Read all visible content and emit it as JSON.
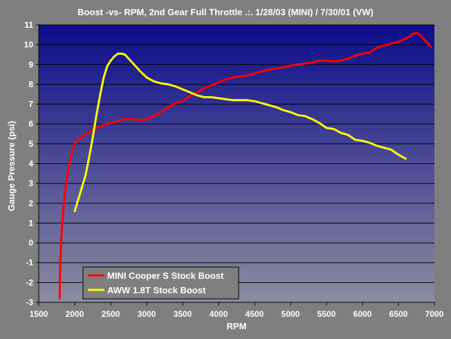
{
  "chart_data": {
    "type": "line",
    "title": "Boost -vs- RPM, 2nd Gear Full Throttle .:. 1/28/03  (MINI) / 7/30/01 (VW)",
    "xlabel": "RPM",
    "ylabel": "Gauge Pressure (psi)",
    "xlim": [
      1500,
      7000
    ],
    "ylim": [
      -3,
      11
    ],
    "xticks": [
      1500,
      2000,
      2500,
      3000,
      3500,
      4000,
      4500,
      5000,
      5500,
      6000,
      6500,
      7000
    ],
    "yticks": [
      -3,
      -2,
      -1,
      0,
      1,
      2,
      3,
      4,
      5,
      6,
      7,
      8,
      9,
      10,
      11
    ],
    "grid": "horizontal",
    "legend_position": "bottom-left",
    "colors": {
      "background": "#7f7f7f",
      "plot_top": "#0c0c8c",
      "plot_bottom": "#8c8ca0",
      "grid": "#000000",
      "text": "#ffffff",
      "legend_bg": "#7f7f7f"
    },
    "series": [
      {
        "name": "MINI Cooper S Stock Boost",
        "color": "#ff0000",
        "x": [
          1790,
          1800,
          1820,
          1850,
          1880,
          1920,
          1960,
          2000,
          2050,
          2100,
          2200,
          2300,
          2400,
          2500,
          2600,
          2700,
          2800,
          2900,
          3000,
          3100,
          3200,
          3300,
          3400,
          3500,
          3600,
          3700,
          3800,
          3900,
          4000,
          4100,
          4200,
          4300,
          4400,
          4500,
          4600,
          4700,
          4800,
          4900,
          5000,
          5100,
          5200,
          5300,
          5400,
          5500,
          5600,
          5700,
          5800,
          5900,
          6000,
          6100,
          6200,
          6300,
          6400,
          6500,
          6600,
          6650,
          6700,
          6750,
          6800,
          6850,
          6900,
          6950
        ],
        "values": [
          -2.8,
          -1.0,
          0.6,
          2.0,
          3.0,
          3.9,
          4.6,
          5.0,
          5.2,
          5.35,
          5.6,
          5.8,
          5.95,
          6.05,
          6.15,
          6.25,
          6.25,
          6.2,
          6.25,
          6.4,
          6.6,
          6.85,
          7.05,
          7.15,
          7.4,
          7.6,
          7.8,
          7.95,
          8.1,
          8.25,
          8.35,
          8.4,
          8.45,
          8.55,
          8.65,
          8.75,
          8.8,
          8.85,
          8.95,
          9.0,
          9.05,
          9.1,
          9.2,
          9.2,
          9.15,
          9.2,
          9.3,
          9.45,
          9.55,
          9.6,
          9.85,
          9.95,
          10.05,
          10.15,
          10.3,
          10.4,
          10.55,
          10.6,
          10.5,
          10.3,
          10.1,
          9.9
        ]
      },
      {
        "name": "AWW 1.8T Stock Boost",
        "color": "#ffff00",
        "x": [
          2000,
          2050,
          2100,
          2150,
          2200,
          2250,
          2300,
          2350,
          2400,
          2450,
          2500,
          2550,
          2600,
          2650,
          2700,
          2750,
          2800,
          2900,
          3000,
          3100,
          3200,
          3300,
          3400,
          3500,
          3600,
          3700,
          3800,
          3900,
          4000,
          4100,
          4200,
          4300,
          4400,
          4500,
          4600,
          4700,
          4800,
          4900,
          5000,
          5100,
          5200,
          5300,
          5400,
          5500,
          5600,
          5700,
          5800,
          5900,
          6000,
          6100,
          6200,
          6300,
          6400,
          6500,
          6600
        ],
        "values": [
          1.6,
          2.2,
          2.8,
          3.4,
          4.3,
          5.3,
          6.4,
          7.4,
          8.3,
          8.9,
          9.2,
          9.4,
          9.55,
          9.55,
          9.5,
          9.3,
          9.1,
          8.7,
          8.35,
          8.15,
          8.05,
          8.0,
          7.9,
          7.75,
          7.6,
          7.45,
          7.35,
          7.35,
          7.3,
          7.25,
          7.2,
          7.2,
          7.2,
          7.15,
          7.05,
          6.95,
          6.85,
          6.7,
          6.6,
          6.45,
          6.4,
          6.25,
          6.05,
          5.8,
          5.75,
          5.55,
          5.45,
          5.2,
          5.15,
          5.05,
          4.9,
          4.8,
          4.7,
          4.45,
          4.25
        ]
      }
    ]
  }
}
